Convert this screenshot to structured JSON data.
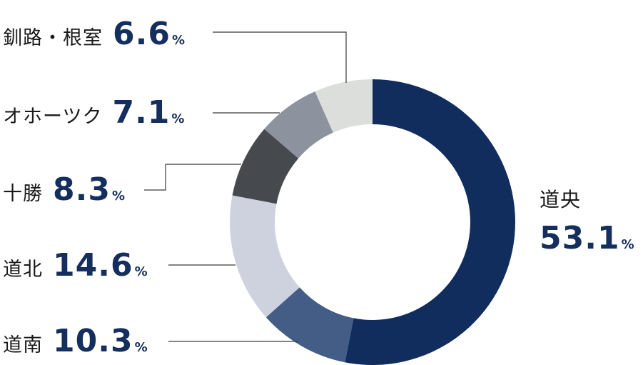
{
  "chart_data": {
    "type": "pie",
    "style": "donut",
    "categories": [
      "道央",
      "道南",
      "道北",
      "十勝",
      "オホーツク",
      "釧路・根室"
    ],
    "values": [
      53.1,
      10.3,
      14.6,
      8.3,
      7.1,
      6.6
    ],
    "value_labels": [
      "53.1",
      "10.3",
      "14.6",
      "8.3",
      "7.1",
      "6.6"
    ],
    "unit": "%",
    "colors": [
      "#102d5e",
      "#445d86",
      "#cdd2de",
      "#46494d",
      "#8d939e",
      "#dcdedc"
    ],
    "label_color": "#142f5e"
  }
}
